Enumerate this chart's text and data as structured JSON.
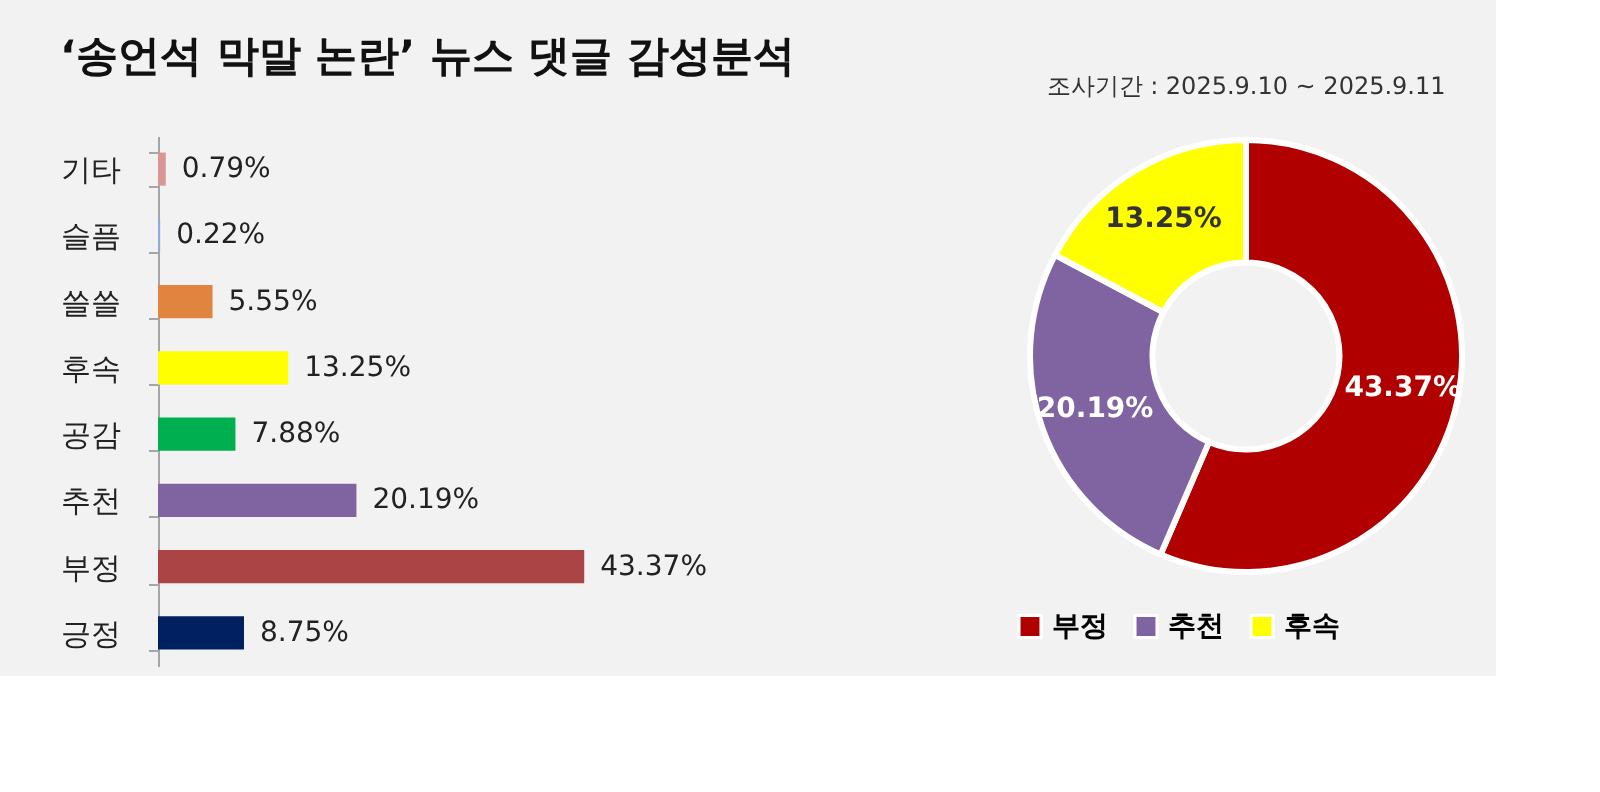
{
  "chart_data": [
    {
      "type": "bar",
      "orientation": "horizontal",
      "title": "‘송언석 막말 논란’ 뉴스 댓글 감성분석",
      "legend": false,
      "grid": false,
      "tick_labels": "y",
      "categories": [
        "기타",
        "슬픔",
        "쓸쓸",
        "후속",
        "공감",
        "추천",
        "부정",
        "긍정"
      ],
      "values": [
        0.79,
        0.22,
        5.55,
        13.25,
        7.88,
        20.19,
        43.37,
        8.75
      ],
      "value_labels": [
        "0.79%",
        "0.22%",
        "5.55%",
        "13.25%",
        "7.88%",
        "20.19%",
        "43.37%",
        "8.75%"
      ],
      "colors": [
        "#d99694",
        "#8ea9db",
        "#e0843f",
        "#ffff00",
        "#00b050",
        "#8064a2",
        "#ab4545",
        "#002060"
      ]
    },
    {
      "type": "donut",
      "legend": "bottom",
      "annotations": [
        "조사기간 : 2025.9.10 ~ 2025.9.11"
      ],
      "categories": [
        "부정",
        "추천",
        "후속"
      ],
      "values": [
        43.37,
        20.19,
        13.25
      ],
      "value_labels": [
        "43.37%",
        "20.19%",
        "13.25%"
      ],
      "colors": [
        "#b00000",
        "#8064a2",
        "#ffff00"
      ]
    }
  ]
}
